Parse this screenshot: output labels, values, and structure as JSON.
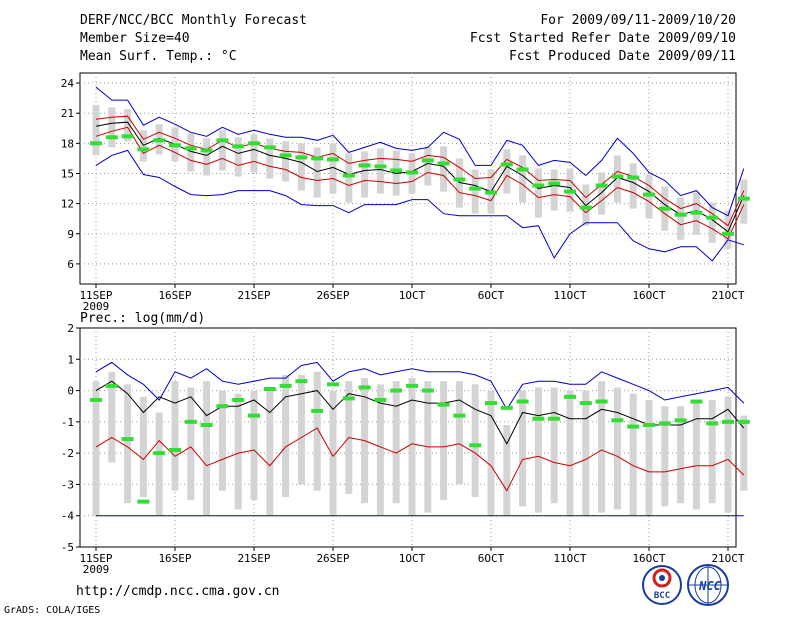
{
  "header": {
    "title": "DERF/NCC/BCC Monthly Forecast",
    "member_size": "Member Size=40",
    "variable": "Mean Surf. Temp.: °C",
    "period": "For 2009/09/11-2009/10/20",
    "refer_date": "Fcst Started Refer Date 2009/09/10",
    "produced_date": "Fcst Produced Date 2009/09/11"
  },
  "footer": {
    "url": "http://cmdp.ncc.cma.gov.cn",
    "grads": "GrADS: COLA/IGES",
    "logo_bcc": "BCC",
    "logo_ncc": "NCC"
  },
  "colors": {
    "max": "#0000cc",
    "min": "#0000cc",
    "upper": "#cc0000",
    "lower": "#cc0000",
    "mean": "#000000",
    "range_bar": "#d4d4d4",
    "green": "#33dd33"
  },
  "chart_data": [
    {
      "type": "line",
      "title": "Mean Surf. Temp.: °C",
      "x_tick_labels": [
        "11SEP",
        "16SEP",
        "21SEP",
        "26SEP",
        "1OCT",
        "6OCT",
        "11OCT",
        "16OCT",
        "21OCT"
      ],
      "x_year_label": "2009",
      "x_range": [
        0,
        40
      ],
      "ylim": [
        4,
        25
      ],
      "y_ticks": [
        6,
        9,
        12,
        15,
        18,
        21,
        24
      ],
      "max": [
        23.6,
        22.3,
        22.3,
        19.8,
        20.6,
        19.9,
        19.1,
        18.7,
        19.6,
        18.9,
        19.3,
        18.9,
        18.6,
        18.6,
        18.3,
        18.8,
        17.1,
        17.6,
        18.1,
        17.5,
        17.3,
        17.6,
        19.1,
        18.4,
        15.8,
        15.8,
        18.3,
        17.8,
        15.8,
        16.3,
        16.1,
        14.8,
        16.3,
        18.5,
        17.0,
        15.1,
        14.3,
        12.8,
        13.3,
        11.6,
        10.8,
        15.5
      ],
      "upper": [
        20.4,
        20.6,
        20.7,
        18.4,
        19.1,
        18.5,
        17.8,
        17.4,
        18.3,
        17.6,
        18.0,
        17.5,
        17.2,
        17.1,
        16.6,
        17.0,
        16.0,
        16.3,
        16.5,
        16.4,
        16.2,
        16.8,
        16.6,
        15.6,
        14.5,
        14.6,
        16.4,
        15.6,
        14.3,
        14.4,
        14.3,
        12.6,
        13.9,
        15.2,
        14.7,
        13.8,
        12.5,
        11.5,
        12.0,
        11.0,
        9.8,
        13.3
      ],
      "mean": [
        19.7,
        20.0,
        20.1,
        17.8,
        18.5,
        17.9,
        17.2,
        16.8,
        17.7,
        17.0,
        17.4,
        16.8,
        16.5,
        16.1,
        15.2,
        15.6,
        14.9,
        15.3,
        15.4,
        15.0,
        15.2,
        16.0,
        15.7,
        14.1,
        13.8,
        13.2,
        15.7,
        14.8,
        13.5,
        13.8,
        13.6,
        11.8,
        13.1,
        14.6,
        14.1,
        13.2,
        11.9,
        10.9,
        11.3,
        10.4,
        9.2,
        12.8
      ],
      "lower": [
        18.7,
        19.2,
        19.6,
        17.0,
        17.8,
        17.1,
        16.3,
        15.9,
        16.5,
        15.8,
        16.2,
        15.7,
        15.4,
        14.6,
        14.3,
        14.5,
        13.8,
        14.3,
        14.2,
        14.0,
        14.2,
        15.1,
        14.8,
        13.1,
        12.8,
        12.3,
        14.8,
        13.9,
        12.6,
        12.9,
        12.7,
        11.1,
        12.3,
        13.6,
        13.1,
        12.2,
        11.0,
        9.9,
        10.3,
        9.5,
        8.5,
        11.9
      ],
      "min": [
        15.8,
        16.8,
        17.3,
        14.9,
        14.6,
        13.7,
        12.9,
        12.8,
        12.9,
        13.3,
        13.3,
        13.3,
        12.8,
        11.9,
        11.8,
        11.8,
        11.1,
        11.9,
        11.9,
        11.9,
        12.4,
        12.4,
        11.0,
        10.8,
        10.8,
        10.8,
        10.8,
        9.6,
        9.8,
        6.6,
        9.0,
        10.1,
        10.1,
        10.1,
        8.3,
        7.5,
        7.2,
        7.7,
        7.7,
        6.3,
        8.4,
        7.9
      ],
      "range_low": [
        16.8,
        17.6,
        18.2,
        16.2,
        16.9,
        16.2,
        15.2,
        14.8,
        15.3,
        14.7,
        15.1,
        14.5,
        14.2,
        13.3,
        12.6,
        13.0,
        12.1,
        12.6,
        13.0,
        12.8,
        13.0,
        13.8,
        13.2,
        11.6,
        11.0,
        11.0,
        13.0,
        12.1,
        10.6,
        11.3,
        11.2,
        9.8,
        10.9,
        12.1,
        11.5,
        10.5,
        9.3,
        8.4,
        8.9,
        8.1,
        7.5,
        10.0
      ],
      "range_high": [
        21.8,
        21.6,
        21.4,
        19.3,
        19.9,
        19.6,
        19.0,
        18.5,
        19.3,
        18.6,
        18.9,
        18.5,
        18.2,
        18.0,
        17.6,
        18.0,
        17.0,
        17.2,
        17.5,
        17.3,
        17.0,
        17.6,
        17.7,
        16.5,
        15.4,
        15.4,
        17.4,
        16.8,
        15.5,
        15.4,
        15.5,
        13.9,
        15.1,
        16.8,
        16.0,
        14.9,
        13.7,
        12.6,
        13.1,
        12.1,
        11.3,
        14.4
      ],
      "green": [
        18.0,
        18.6,
        18.7,
        17.4,
        18.3,
        17.8,
        17.5,
        17.3,
        18.3,
        17.7,
        18.0,
        17.6,
        16.8,
        16.6,
        16.5,
        16.4,
        14.8,
        15.8,
        15.7,
        15.3,
        15.1,
        16.3,
        16.0,
        14.4,
        13.5,
        13.1,
        15.9,
        15.4,
        13.8,
        14.0,
        13.2,
        11.6,
        13.8,
        14.7,
        14.6,
        12.9,
        11.5,
        10.9,
        11.1,
        10.6,
        9.0,
        12.5
      ]
    },
    {
      "type": "line",
      "title": "Prec.: log(mm/d)",
      "x_tick_labels": [
        "11SEP",
        "16SEP",
        "21SEP",
        "26SEP",
        "1OCT",
        "6OCT",
        "11OCT",
        "16OCT",
        "21OCT"
      ],
      "x_year_label": "2009",
      "x_range": [
        0,
        40
      ],
      "ylim": [
        -5,
        2
      ],
      "y_ticks": [
        -5,
        -4,
        -3,
        -2,
        -1,
        0,
        1,
        2
      ],
      "max": [
        0.6,
        0.9,
        0.5,
        0.2,
        -0.3,
        0.6,
        0.4,
        0.7,
        0.3,
        0.2,
        0.3,
        0.4,
        0.4,
        0.8,
        0.9,
        0.3,
        0.6,
        0.7,
        0.5,
        0.6,
        0.7,
        0.6,
        0.6,
        0.6,
        0.5,
        0.3,
        -0.6,
        0.2,
        0.3,
        0.3,
        0.2,
        0.2,
        0.6,
        0.4,
        0.2,
        0.0,
        -0.3,
        -0.2,
        -0.1,
        0.0,
        0.1,
        -0.4
      ],
      "mean": [
        0.0,
        0.3,
        -0.1,
        -0.7,
        -0.2,
        -0.4,
        -0.2,
        -0.8,
        -0.5,
        -0.5,
        -0.3,
        -0.7,
        -0.2,
        -0.1,
        0.0,
        -0.6,
        -0.1,
        -0.2,
        -0.4,
        -0.5,
        -0.3,
        -0.4,
        -0.4,
        -0.3,
        -0.6,
        -0.8,
        -1.7,
        -0.7,
        -0.8,
        -0.7,
        -0.9,
        -0.9,
        -0.6,
        -0.7,
        -0.9,
        -1.1,
        -1.1,
        -1.1,
        -0.9,
        -0.9,
        -0.6,
        -1.2
      ],
      "lower": [
        -1.8,
        -1.5,
        -1.8,
        -2.2,
        -1.6,
        -2.1,
        -1.8,
        -2.4,
        -2.2,
        -2.0,
        -1.9,
        -2.4,
        -1.8,
        -1.5,
        -1.2,
        -2.1,
        -1.5,
        -1.6,
        -1.8,
        -2.0,
        -1.7,
        -1.8,
        -1.8,
        -1.7,
        -2.0,
        -2.4,
        -3.2,
        -2.2,
        -2.1,
        -2.3,
        -2.4,
        -2.2,
        -1.9,
        -2.1,
        -2.4,
        -2.6,
        -2.6,
        -2.5,
        -2.4,
        -2.4,
        -2.2,
        -2.7
      ],
      "min": [
        -4.0,
        -4.0,
        -4.0,
        -4.0,
        -4.0,
        -4.0,
        -4.0,
        -4.0,
        -4.0,
        -4.0,
        -4.0,
        -4.0,
        -4.0,
        -4.0,
        -4.0,
        -4.0,
        -4.0,
        -4.0,
        -4.0,
        -4.0,
        -4.0,
        -4.0,
        -4.0,
        -4.0,
        -4.0,
        -4.0,
        -4.0,
        -4.0,
        -4.0,
        -4.0,
        -4.0,
        -4.0,
        -4.0,
        -4.0,
        -4.0,
        -4.0,
        -4.0,
        -4.0,
        -4.0,
        -4.0,
        -4.0,
        -4.0
      ],
      "range_low": [
        -4.0,
        -2.3,
        -3.6,
        -3.4,
        -4.0,
        -3.2,
        -3.5,
        -4.0,
        -3.2,
        -3.8,
        -3.5,
        -4.0,
        -3.4,
        -3.0,
        -3.2,
        -4.0,
        -3.3,
        -3.6,
        -4.0,
        -3.6,
        -4.0,
        -3.9,
        -3.5,
        -3.0,
        -3.4,
        -4.0,
        -4.0,
        -3.7,
        -3.9,
        -3.6,
        -4.0,
        -4.0,
        -3.9,
        -3.8,
        -4.0,
        -4.0,
        -3.7,
        -3.6,
        -3.8,
        -3.6,
        -3.9,
        -3.2
      ],
      "range_high": [
        0.3,
        0.6,
        0.2,
        -0.2,
        -0.7,
        0.3,
        0.1,
        0.3,
        0.0,
        -0.1,
        0.0,
        0.1,
        0.5,
        0.5,
        0.6,
        0.0,
        0.3,
        0.4,
        0.2,
        0.3,
        0.4,
        0.3,
        0.3,
        0.3,
        0.2,
        0.0,
        -1.1,
        0.0,
        0.1,
        0.1,
        0.0,
        0.0,
        0.3,
        0.1,
        -0.1,
        -0.3,
        -0.5,
        -0.5,
        -0.4,
        -0.3,
        -0.2,
        -0.8
      ],
      "green": [
        -0.3,
        0.15,
        -1.55,
        -3.55,
        -2.0,
        -1.9,
        -1.0,
        -1.1,
        -0.5,
        -0.3,
        -0.8,
        0.05,
        0.15,
        0.3,
        -0.65,
        0.2,
        -0.25,
        0.1,
        -0.3,
        0.0,
        0.15,
        0.0,
        -0.45,
        -0.8,
        -1.75,
        -0.4,
        -0.55,
        -0.35,
        -0.9,
        -0.9,
        -0.2,
        -0.4,
        -0.35,
        -0.95,
        -1.15,
        -1.1,
        -1.05,
        -0.95,
        -0.35,
        -1.05,
        -1.0,
        -1.0
      ]
    }
  ]
}
